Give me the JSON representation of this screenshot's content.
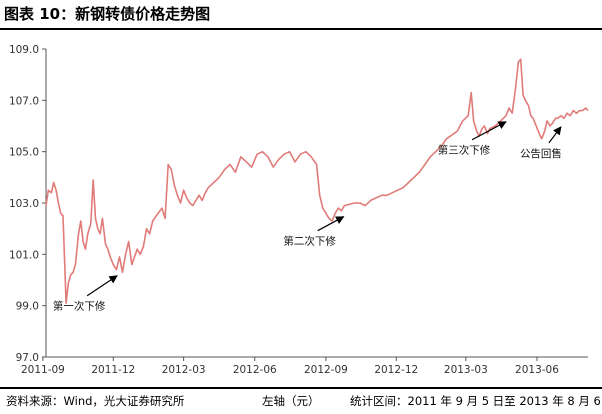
{
  "title": "图表 10：新钢转债价格走势图",
  "footer": {
    "source": "资料来源：Wind，光大证券研究所",
    "axis_note": "左轴（元）",
    "period": "统计区间：2011 年 9 月 5 日至 2013 年 8 月 6 日"
  },
  "colors": {
    "line": "#e07b78",
    "axis": "#555555",
    "text": "#333333"
  },
  "chart_data": {
    "type": "line",
    "title": "",
    "xlabel": "",
    "ylabel": "",
    "ylim": [
      97.0,
      109.0
    ],
    "yticks": [
      "97.0",
      "99.0",
      "101.0",
      "103.0",
      "105.0",
      "107.0",
      "109.0"
    ],
    "xticks": [
      "2011-09",
      "2011-12",
      "2012-03",
      "2012-06",
      "2012-09",
      "2012-12",
      "2013-03",
      "2013-06"
    ],
    "x_range": [
      "2011-09-05",
      "2013-08-06"
    ],
    "grid": false,
    "series": [
      {
        "name": "",
        "x": [
          "2011-09-05",
          "2011-09-08",
          "2011-09-12",
          "2011-09-15",
          "2011-09-18",
          "2011-09-21",
          "2011-09-24",
          "2011-09-27",
          "2011-10-01",
          "2011-10-04",
          "2011-10-07",
          "2011-10-10",
          "2011-10-13",
          "2011-10-17",
          "2011-10-20",
          "2011-10-23",
          "2011-10-26",
          "2011-10-29",
          "2011-11-02",
          "2011-11-05",
          "2011-11-08",
          "2011-11-11",
          "2011-11-14",
          "2011-11-17",
          "2011-11-21",
          "2011-11-24",
          "2011-11-27",
          "2011-12-01",
          "2011-12-05",
          "2011-12-09",
          "2011-12-13",
          "2011-12-17",
          "2011-12-21",
          "2011-12-25",
          "2012-01-01",
          "2012-01-05",
          "2012-01-09",
          "2012-01-13",
          "2012-01-17",
          "2012-01-21",
          "2012-01-28",
          "2012-02-02",
          "2012-02-06",
          "2012-02-10",
          "2012-02-14",
          "2012-02-18",
          "2012-02-22",
          "2012-02-26",
          "2012-03-01",
          "2012-03-05",
          "2012-03-09",
          "2012-03-13",
          "2012-03-17",
          "2012-03-21",
          "2012-03-25",
          "2012-03-29",
          "2012-04-02",
          "2012-04-09",
          "2012-04-16",
          "2012-04-23",
          "2012-04-30",
          "2012-05-07",
          "2012-05-14",
          "2012-05-21",
          "2012-05-28",
          "2012-06-04",
          "2012-06-11",
          "2012-06-18",
          "2012-06-25",
          "2012-07-02",
          "2012-07-09",
          "2012-07-16",
          "2012-07-23",
          "2012-07-30",
          "2012-08-06",
          "2012-08-13",
          "2012-08-20",
          "2012-08-24",
          "2012-08-28",
          "2012-09-01",
          "2012-09-05",
          "2012-09-09",
          "2012-09-13",
          "2012-09-17",
          "2012-09-21",
          "2012-09-25",
          "2012-10-08",
          "2012-10-15",
          "2012-10-22",
          "2012-10-29",
          "2012-11-05",
          "2012-11-12",
          "2012-11-19",
          "2012-11-26",
          "2012-12-03",
          "2012-12-10",
          "2012-12-17",
          "2012-12-24",
          "2012-12-31",
          "2013-01-07",
          "2013-01-14",
          "2013-01-21",
          "2013-01-28",
          "2013-02-04",
          "2013-02-18",
          "2013-02-25",
          "2013-03-04",
          "2013-03-08",
          "2013-03-11",
          "2013-03-15",
          "2013-03-18",
          "2013-03-22",
          "2013-03-25",
          "2013-03-29",
          "2013-04-01",
          "2013-04-08",
          "2013-04-15",
          "2013-04-22",
          "2013-04-26",
          "2013-04-30",
          "2013-05-04",
          "2013-05-08",
          "2013-05-11",
          "2013-05-14",
          "2013-05-17",
          "2013-05-21",
          "2013-05-24",
          "2013-05-27",
          "2013-05-31",
          "2013-06-04",
          "2013-06-07",
          "2013-06-11",
          "2013-06-14",
          "2013-06-18",
          "2013-06-21",
          "2013-06-25",
          "2013-06-28",
          "2013-07-02",
          "2013-07-06",
          "2013-07-10",
          "2013-07-14",
          "2013-07-18",
          "2013-07-22",
          "2013-07-26",
          "2013-07-30",
          "2013-08-03",
          "2013-08-06"
        ],
        "values": [
          102.9,
          103.5,
          103.4,
          103.8,
          103.5,
          103.0,
          102.6,
          102.5,
          99.1,
          99.9,
          100.2,
          100.3,
          100.6,
          101.8,
          102.3,
          101.5,
          101.2,
          101.8,
          102.2,
          103.9,
          102.4,
          102.0,
          101.8,
          102.4,
          101.4,
          101.2,
          100.9,
          100.6,
          100.4,
          100.9,
          100.3,
          101.0,
          101.5,
          100.6,
          101.2,
          101.0,
          101.3,
          102.0,
          101.8,
          102.3,
          102.6,
          102.8,
          102.4,
          104.5,
          104.3,
          103.7,
          103.3,
          103.0,
          103.5,
          103.2,
          103.0,
          102.9,
          103.1,
          103.3,
          103.1,
          103.4,
          103.6,
          103.8,
          104.0,
          104.3,
          104.5,
          104.2,
          104.8,
          104.6,
          104.4,
          104.9,
          105.0,
          104.8,
          104.4,
          104.7,
          104.9,
          105.0,
          104.6,
          104.9,
          105.0,
          104.8,
          104.5,
          103.3,
          102.8,
          102.6,
          102.4,
          102.3,
          102.6,
          102.8,
          102.7,
          102.9,
          103.0,
          103.0,
          102.9,
          103.1,
          103.2,
          103.3,
          103.3,
          103.4,
          103.5,
          103.6,
          103.8,
          104.0,
          104.2,
          104.5,
          104.8,
          105.0,
          105.2,
          105.5,
          105.8,
          106.2,
          106.4,
          107.3,
          106.2,
          105.8,
          105.6,
          105.9,
          106.0,
          105.7,
          105.9,
          106.0,
          106.2,
          106.4,
          106.7,
          106.5,
          107.4,
          108.5,
          108.6,
          107.2,
          107.0,
          106.8,
          106.4,
          106.3,
          106.0,
          105.7,
          105.5,
          105.8,
          106.2,
          106.0,
          106.1,
          106.3,
          106.3,
          106.4,
          106.3,
          106.5,
          106.4,
          106.6,
          106.5,
          106.6,
          106.6,
          106.7,
          106.6
        ]
      }
    ],
    "annotations": [
      {
        "text": "第一次下修",
        "x": "2011-12-06",
        "y": 100.4
      },
      {
        "text": "第二次下修",
        "x": "2012-09-24",
        "y": 102.7
      },
      {
        "text": "第三次下修",
        "x": "2013-04-22",
        "y": 106.4
      },
      {
        "text": "公告回售",
        "x": "2013-07-02",
        "y": 106.2
      }
    ]
  }
}
